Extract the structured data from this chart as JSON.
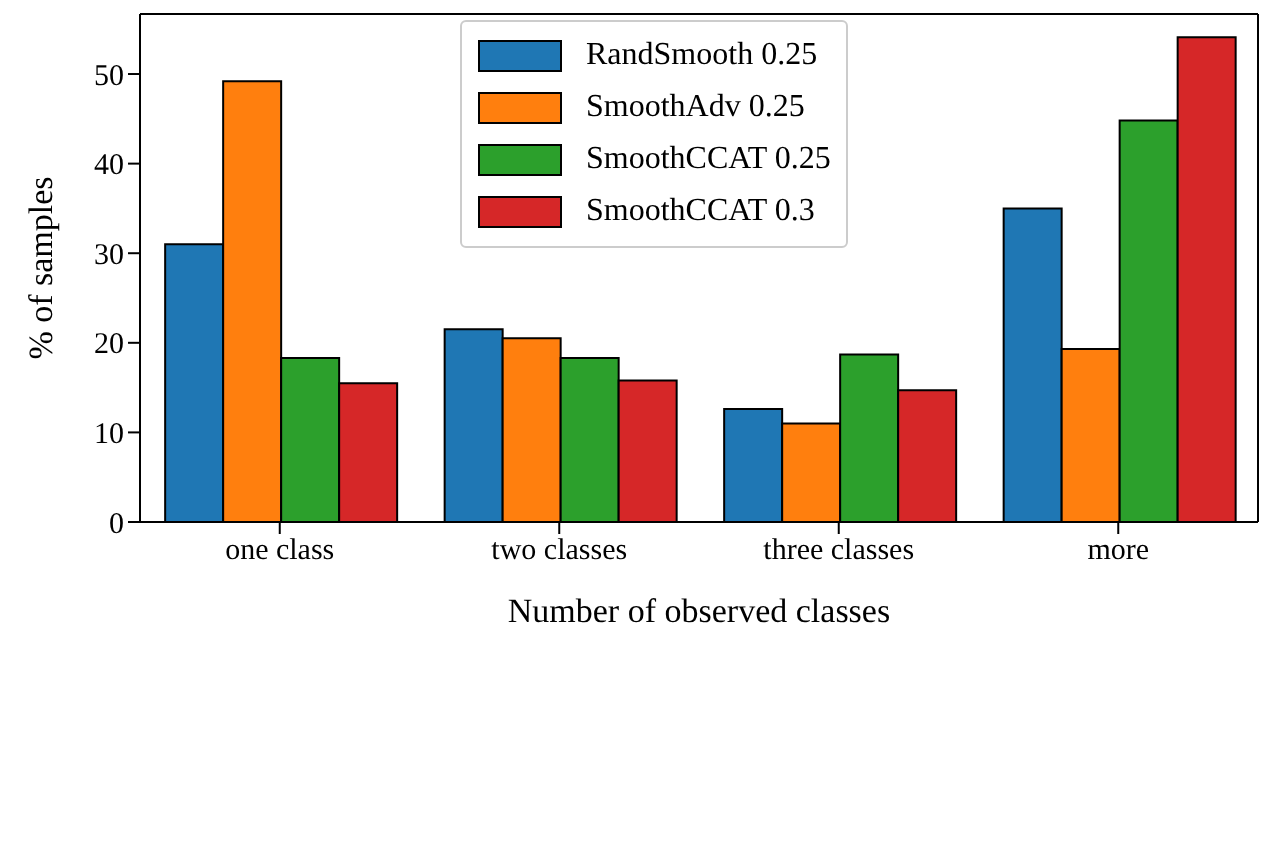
{
  "chart_data": {
    "type": "bar",
    "xlabel": "Number of observed classes",
    "ylabel": "% of samples",
    "categories": [
      "one class",
      "two classes",
      "three classes",
      "more"
    ],
    "series": [
      {
        "name": "RandSmooth 0.25",
        "color": "#1f77b4",
        "values": [
          31.0,
          21.5,
          12.6,
          35.0
        ]
      },
      {
        "name": "SmoothAdv 0.25",
        "color": "#ff7f0e",
        "values": [
          49.2,
          20.5,
          11.0,
          19.3
        ]
      },
      {
        "name": "SmoothCCAT 0.25",
        "color": "#2ca02c",
        "values": [
          18.3,
          18.3,
          18.7,
          44.8
        ]
      },
      {
        "name": "SmoothCCAT 0.3",
        "color": "#d62728",
        "values": [
          15.5,
          15.8,
          14.7,
          54.1
        ]
      }
    ],
    "ylim": [
      0,
      56.7
    ],
    "yticks": [
      0,
      10,
      20,
      30,
      40,
      50
    ],
    "legend": "top"
  }
}
